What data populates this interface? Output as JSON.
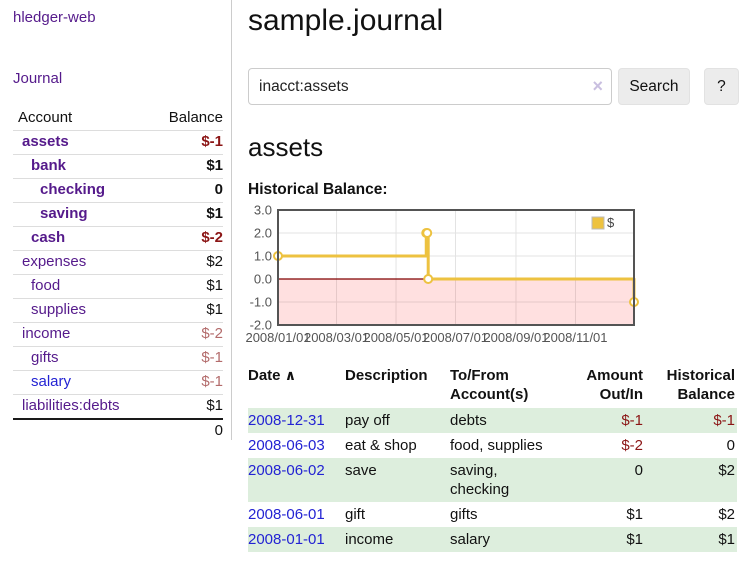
{
  "brand": "hledger-web",
  "colors": {
    "link_purple": "#551a8b",
    "link_blue": "#2323d3",
    "negative_strong": "#8b1515",
    "negative_muted": "#b36b6b",
    "row_stripe_green": "#ddeedd",
    "chart_border": "#545454"
  },
  "sidebar": {
    "journal_link": "Journal",
    "accounts_table": {
      "account_header": "Account",
      "balance_header": "Balance",
      "rows": [
        {
          "account": "assets",
          "balance": "$-1"
        },
        {
          "account": "bank",
          "balance": "$1"
        },
        {
          "account": "checking",
          "balance": "0"
        },
        {
          "account": "saving",
          "balance": "$1"
        },
        {
          "account": "cash",
          "balance": "$-2"
        },
        {
          "account": "expenses",
          "balance": "$2"
        },
        {
          "account": "food",
          "balance": "$1"
        },
        {
          "account": "supplies",
          "balance": "$1"
        },
        {
          "account": "income",
          "balance": "$-2"
        },
        {
          "account": "gifts",
          "balance": "$-1"
        },
        {
          "account": "salary",
          "balance": "$-1"
        },
        {
          "account": "liabilities:debts",
          "balance": "$1"
        }
      ],
      "total_balance": "0"
    }
  },
  "main": {
    "title": "sample.journal",
    "search": {
      "value": "inacct:assets",
      "clear_icon": "×",
      "search_button": "Search",
      "help_button": "?"
    },
    "account_heading": "assets",
    "chart_heading": "Historical Balance:"
  },
  "chart_data": {
    "type": "line",
    "title": "Historical Balance:",
    "series": [
      {
        "name": "$",
        "color": "#edc240",
        "style": "steps",
        "points": [
          [
            "2008-01-01",
            1
          ],
          [
            "2008-06-01",
            2
          ],
          [
            "2008-06-02",
            2
          ],
          [
            "2008-06-03",
            0
          ],
          [
            "2008-12-31",
            -1
          ]
        ]
      }
    ],
    "x_range": [
      "2008-01-01",
      "2008-12-31"
    ],
    "x_ticks": [
      "2008/01/01",
      "2008/03/01",
      "2008/05/01",
      "2008/07/01",
      "2008/09/01",
      "2008/11/01"
    ],
    "y_ticks": [
      3.0,
      2.0,
      1.0,
      0.0,
      -1.0,
      -2.0
    ],
    "ylim": [
      -2,
      3
    ],
    "grid": true,
    "legend_position": "top-right",
    "legend_label": "$",
    "below_zero_fill": "#ff0000",
    "below_zero_fill_opacity": 0.12,
    "zero_line_color": "#800000"
  },
  "register": {
    "headers": {
      "date": "Date",
      "sort_indicator": "∧",
      "description": "Description",
      "account": "To/From Account(s)",
      "amount": "Amount Out/In",
      "balance": "Historical Balance"
    },
    "rows": [
      {
        "date": "2008-12-31",
        "description": "pay off",
        "accounts": "debts",
        "amount": "$-1",
        "balance": "$-1"
      },
      {
        "date": "2008-06-03",
        "description": "eat & shop",
        "accounts": "food, supplies",
        "amount": "$-2",
        "balance": "0"
      },
      {
        "date": "2008-06-02",
        "description": "save",
        "accounts": "saving, checking",
        "amount": "0",
        "balance": "$2"
      },
      {
        "date": "2008-06-01",
        "description": "gift",
        "accounts": "gifts",
        "amount": "$1",
        "balance": "$2"
      },
      {
        "date": "2008-01-01",
        "description": "income",
        "accounts": "salary",
        "amount": "$1",
        "balance": "$1"
      }
    ]
  }
}
